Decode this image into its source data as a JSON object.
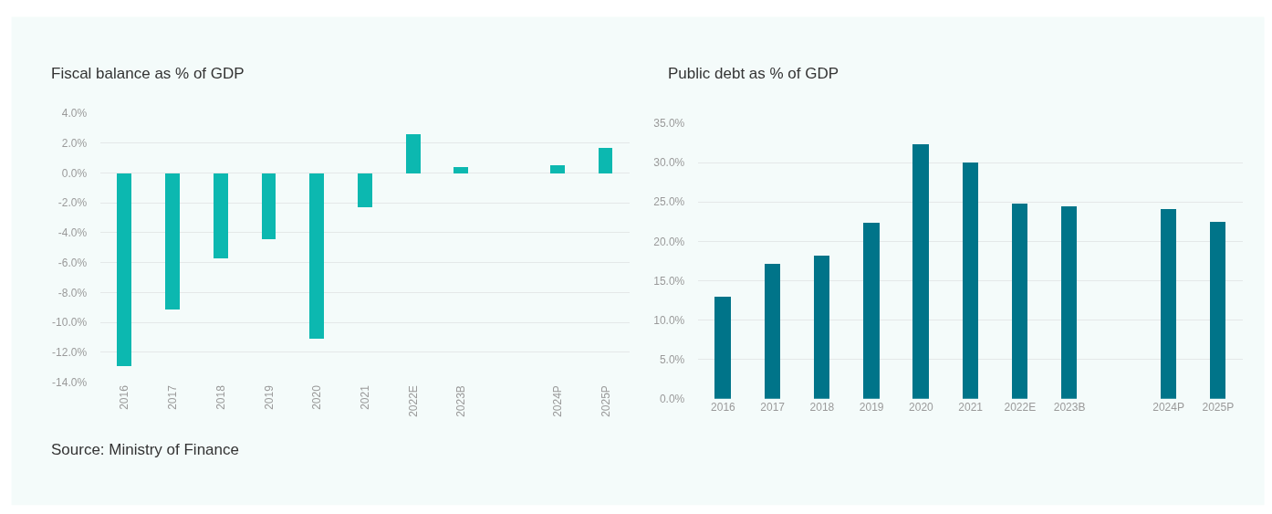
{
  "chart_data": [
    {
      "type": "bar",
      "title": "Fiscal balance as % of GDP",
      "categories": [
        "2016",
        "2017",
        "2018",
        "2019",
        "2020",
        "2021",
        "2022E",
        "2023B",
        null,
        "2024P",
        "2025P"
      ],
      "values": [
        -12.9,
        -9.1,
        -5.7,
        -4.4,
        -11.1,
        -2.3,
        2.6,
        0.4,
        null,
        0.5,
        1.7
      ],
      "color": "#0cb8b0",
      "ylim": [
        -14,
        4
      ],
      "yticks": [
        {
          "value": -14,
          "label": "-14.0%"
        },
        {
          "value": -12,
          "label": "-12.0%"
        },
        {
          "value": -10,
          "label": "-10.0%"
        },
        {
          "value": -8,
          "label": "-8.0%"
        },
        {
          "value": -6,
          "label": "-6.0%"
        },
        {
          "value": -4,
          "label": "-4.0%"
        },
        {
          "value": -2,
          "label": "-2.0%"
        },
        {
          "value": 0,
          "label": "0.0%"
        },
        {
          "value": 2,
          "label": "2.0%"
        },
        {
          "value": 4,
          "label": "4.0%"
        }
      ],
      "grid": "y",
      "annotations": [
        "Source: Ministry of Finance"
      ]
    },
    {
      "type": "bar",
      "title": "Public debt as % of GDP",
      "categories": [
        "2016",
        "2017",
        "2018",
        "2019",
        "2020",
        "2021",
        "2022E",
        "2023B",
        null,
        "2024P",
        "2025P"
      ],
      "values": [
        13.0,
        17.1,
        18.2,
        22.4,
        32.3,
        30.0,
        24.8,
        24.5,
        null,
        24.1,
        22.5
      ],
      "color": "#007489",
      "ylim": [
        0,
        35
      ],
      "yticks": [
        {
          "value": 0,
          "label": "0.0%"
        },
        {
          "value": 5,
          "label": "5.0%"
        },
        {
          "value": 10,
          "label": "10.0%"
        },
        {
          "value": 15,
          "label": "15.0%"
        },
        {
          "value": 20,
          "label": "20.0%"
        },
        {
          "value": 25,
          "label": "25.0%"
        },
        {
          "value": 30,
          "label": "30.0%"
        },
        {
          "value": 35,
          "label": "35.0%"
        }
      ],
      "grid": "y"
    }
  ]
}
